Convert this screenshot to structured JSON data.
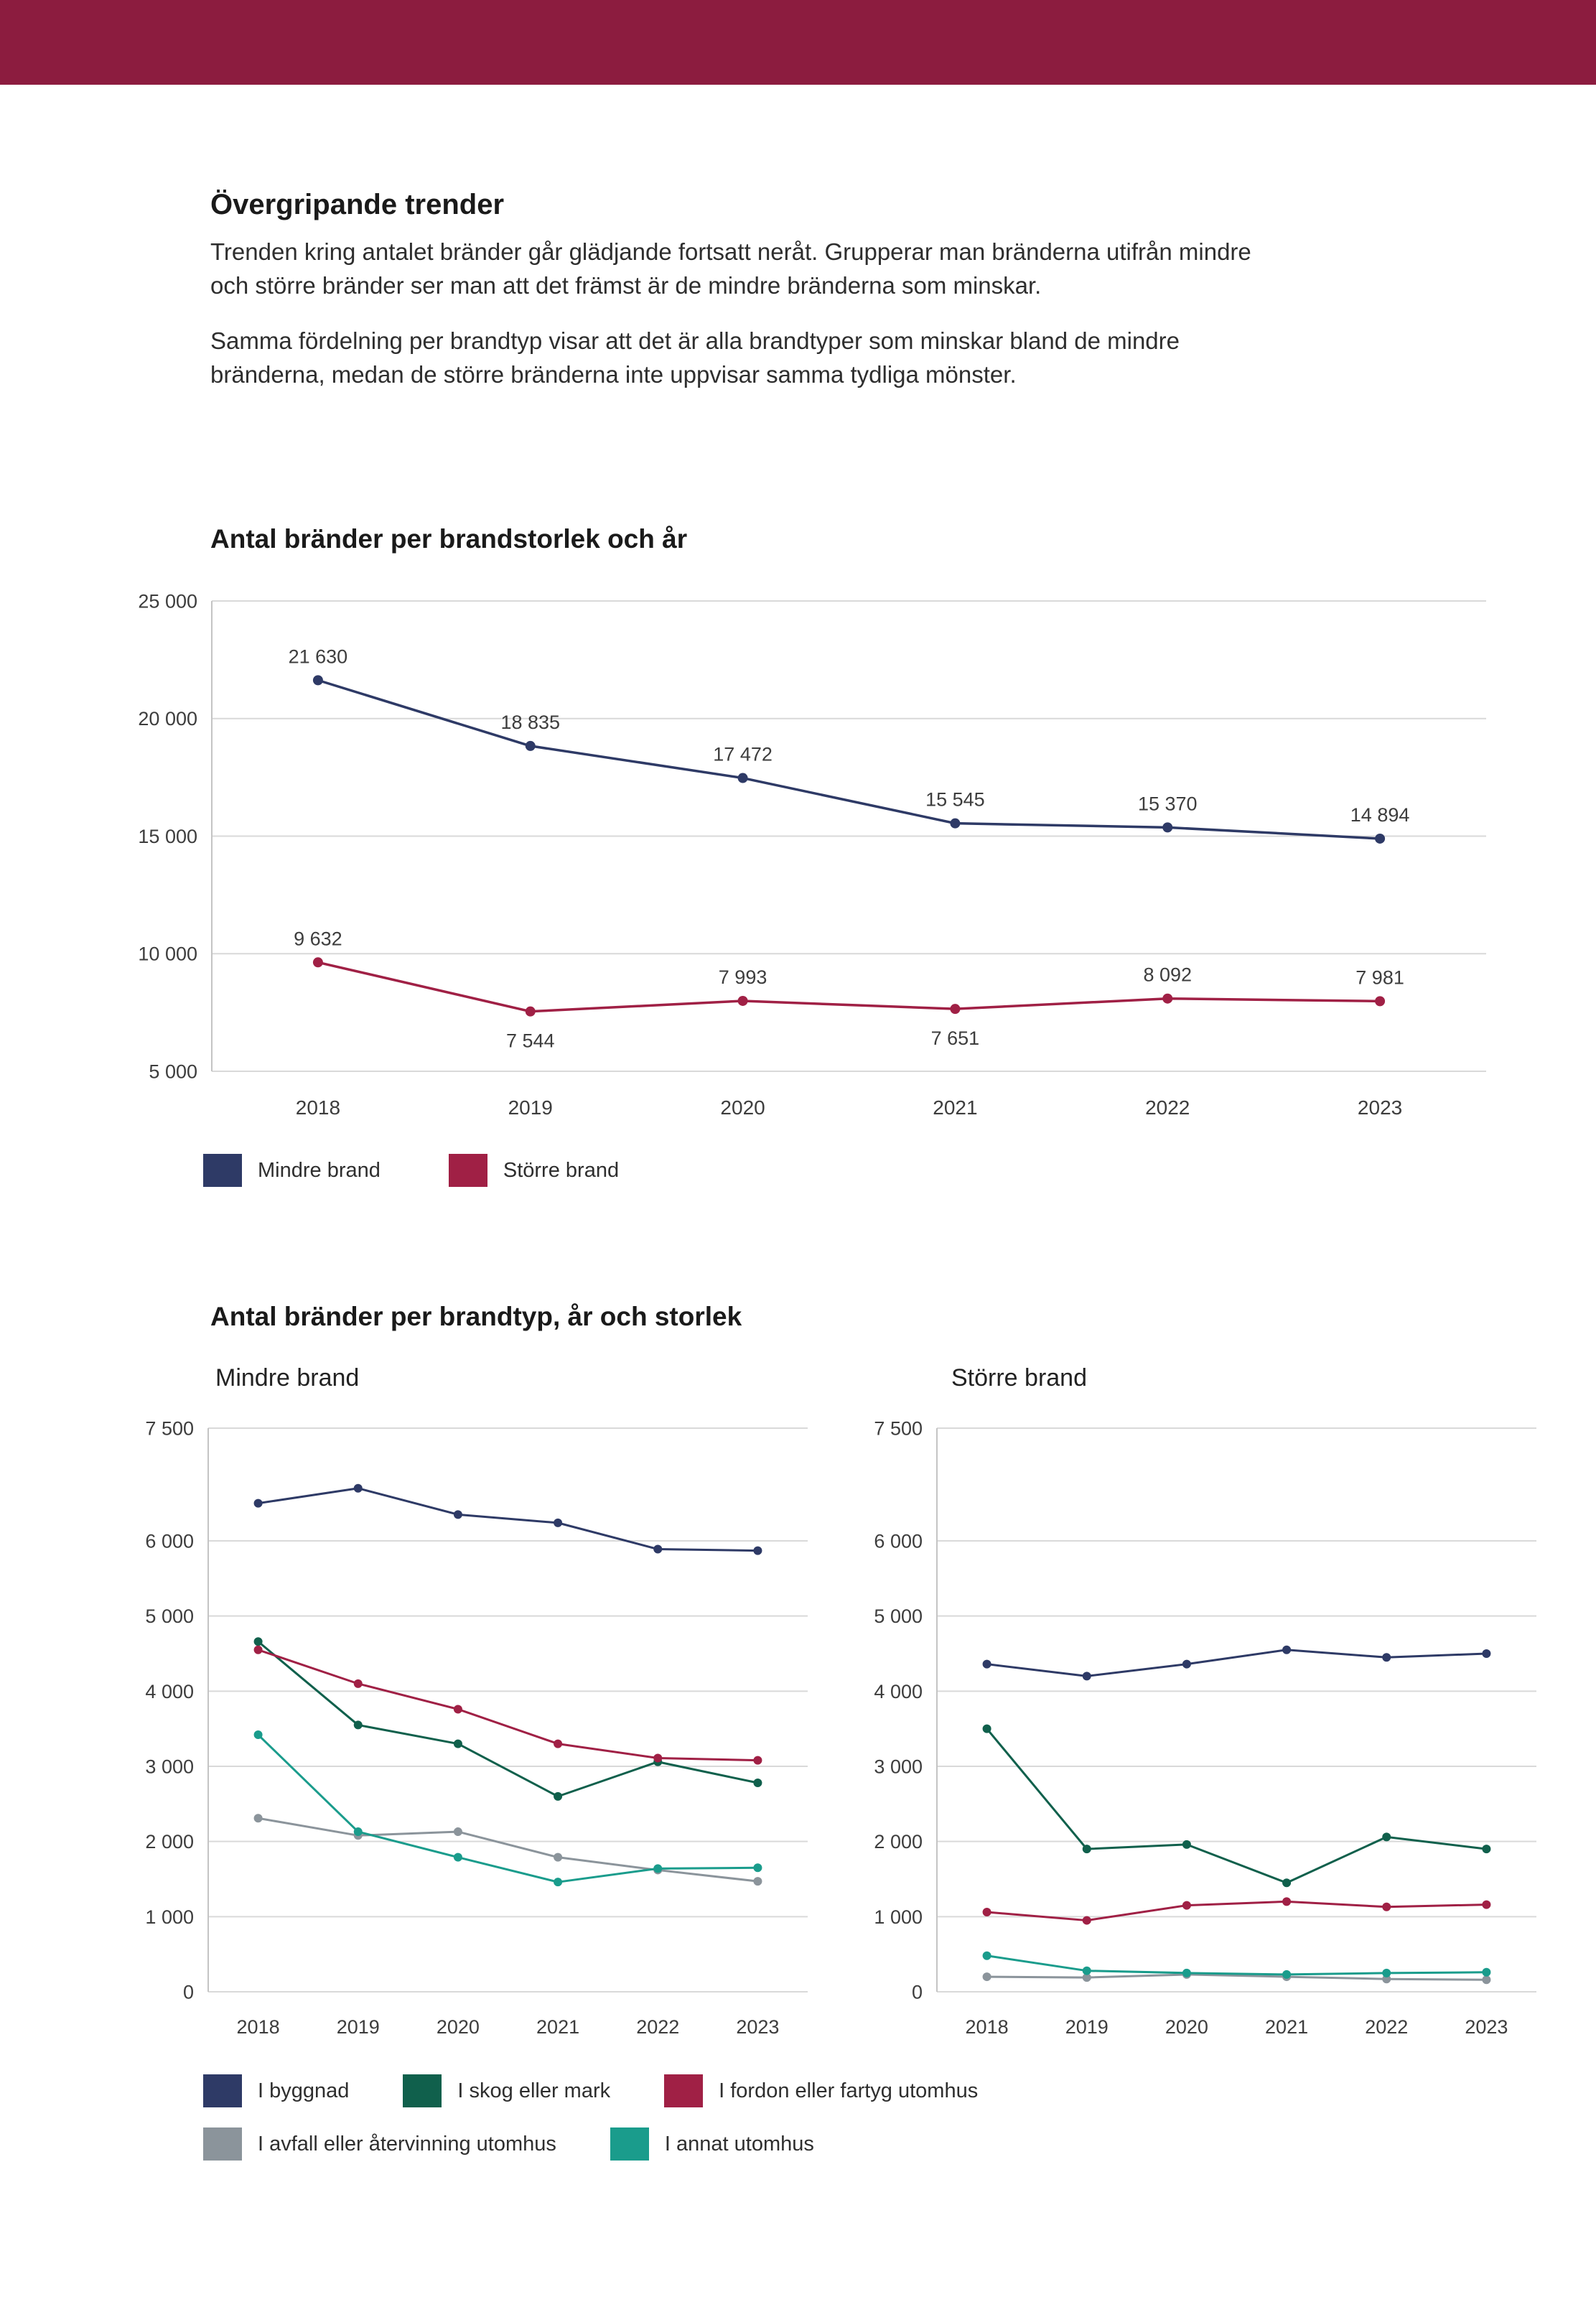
{
  "page": {
    "header_color": "#8c1c3f",
    "text_color": "#2e2e2e",
    "gridline_color": "#d9d9d9",
    "axis_color": "#c4c4c4"
  },
  "intro": {
    "heading": "Övergripande trender",
    "paragraph1": "Trenden kring antalet bränder går glädjande fortsatt neråt. Grupperar man bränderna utifrån mindre och större bränder ser man att det främst är de mindre bränderna som minskar.",
    "paragraph2": "Samma fördelning per brandtyp visar att det är alla brandtyper som minskar bland de mindre bränderna, medan de större bränderna inte uppvisar samma tydliga mönster."
  },
  "section2": {
    "title": "Antal bränder per brandtyp, år och storlek"
  },
  "chart_data": [
    {
      "id": "chart-size-year",
      "type": "line",
      "title": "Antal bränder per brandstorlek och år",
      "categories": [
        "2018",
        "2019",
        "2020",
        "2021",
        "2022",
        "2023"
      ],
      "ylim": [
        5000,
        25000
      ],
      "yticks": [
        5000,
        10000,
        15000,
        20000,
        25000
      ],
      "ytick_labels": [
        "5 000",
        "10 000",
        "15 000",
        "20 000",
        "25 000"
      ],
      "grid": true,
      "legend_position": "bottom",
      "series": [
        {
          "name": "Mindre brand",
          "color": "#2e3a66",
          "values": [
            21630,
            18835,
            17472,
            15545,
            15370,
            14894
          ],
          "labels": [
            "21 630",
            "18 835",
            "17 472",
            "15 545",
            "15 370",
            "14 894"
          ],
          "label_pos": [
            "above",
            "above",
            "above",
            "above",
            "above",
            "above"
          ]
        },
        {
          "name": "Större brand",
          "color": "#a02045",
          "values": [
            9632,
            7544,
            7993,
            7651,
            8092,
            7981
          ],
          "labels": [
            "9 632",
            "7 544",
            "7 993",
            "7 651",
            "8 092",
            "7 981"
          ],
          "label_pos": [
            "above",
            "below",
            "above",
            "below",
            "above",
            "above"
          ]
        }
      ]
    },
    {
      "id": "chart-type-minor",
      "type": "line",
      "title": "Mindre brand",
      "categories": [
        "2018",
        "2019",
        "2020",
        "2021",
        "2022",
        "2023"
      ],
      "ylim": [
        0,
        7500
      ],
      "yticks": [
        0,
        1000,
        2000,
        3000,
        4000,
        5000,
        6000,
        7500
      ],
      "ytick_labels": [
        "0",
        "1 000",
        "2 000",
        "3 000",
        "4 000",
        "5 000",
        "6 000",
        "7 500"
      ],
      "grid": true,
      "series": [
        {
          "name": "I byggnad",
          "color": "#2e3a66",
          "values": [
            6500,
            6700,
            6350,
            6240,
            5890,
            5870
          ]
        },
        {
          "name": "I skog eller mark",
          "color": "#10604c",
          "values": [
            4660,
            3550,
            3300,
            2600,
            3060,
            2780
          ]
        },
        {
          "name": "I fordon eller fartyg utomhus",
          "color": "#a02045",
          "values": [
            4550,
            4100,
            3760,
            3300,
            3110,
            3080
          ]
        },
        {
          "name": "I avfall eller återvinning utomhus",
          "color": "#8b949b",
          "values": [
            2310,
            2080,
            2130,
            1790,
            1620,
            1470
          ]
        },
        {
          "name": "I annat utomhus",
          "color": "#1a9c8c",
          "values": [
            3420,
            2130,
            1790,
            1460,
            1640,
            1650
          ]
        }
      ]
    },
    {
      "id": "chart-type-major",
      "type": "line",
      "title": "Större brand",
      "categories": [
        "2018",
        "2019",
        "2020",
        "2021",
        "2022",
        "2023"
      ],
      "ylim": [
        0,
        7500
      ],
      "yticks": [
        0,
        1000,
        2000,
        3000,
        4000,
        5000,
        6000,
        7500
      ],
      "ytick_labels": [
        "0",
        "1 000",
        "2 000",
        "3 000",
        "4 000",
        "5 000",
        "6 000",
        "7 500"
      ],
      "grid": true,
      "series": [
        {
          "name": "I byggnad",
          "color": "#2e3a66",
          "values": [
            4360,
            4200,
            4360,
            4550,
            4450,
            4500
          ]
        },
        {
          "name": "I skog eller mark",
          "color": "#10604c",
          "values": [
            3500,
            1900,
            1960,
            1450,
            2060,
            1900
          ]
        },
        {
          "name": "I fordon eller fartyg utomhus",
          "color": "#a02045",
          "values": [
            1060,
            950,
            1150,
            1200,
            1130,
            1160
          ]
        },
        {
          "name": "I avfall eller återvinning utomhus",
          "color": "#8b949b",
          "values": [
            200,
            190,
            230,
            200,
            170,
            160
          ]
        },
        {
          "name": "I annat utomhus",
          "color": "#1a9c8c",
          "values": [
            480,
            280,
            250,
            230,
            250,
            260
          ]
        }
      ]
    }
  ]
}
